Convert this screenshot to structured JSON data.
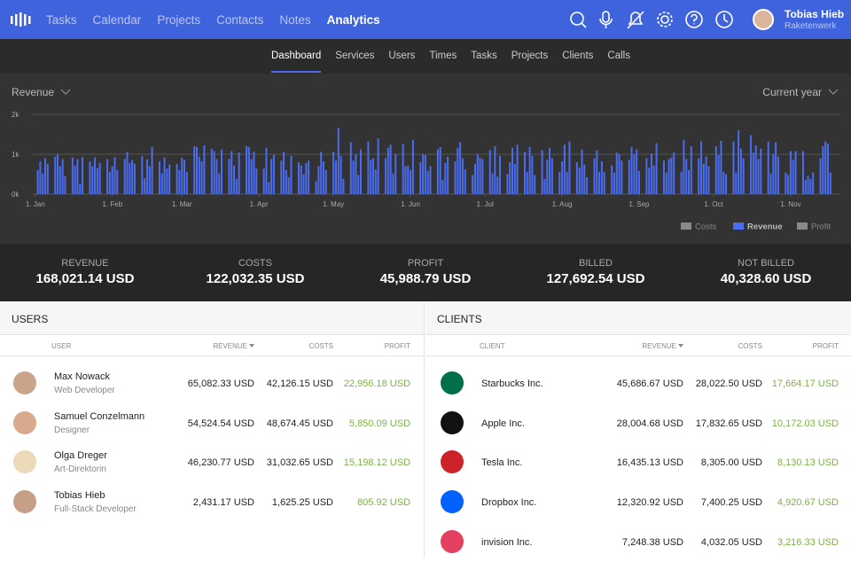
{
  "nav": {
    "items": [
      "Tasks",
      "Calendar",
      "Projects",
      "Contacts",
      "Notes",
      "Analytics"
    ],
    "active": 5
  },
  "user": {
    "name": "Tobias Hieb",
    "company": "Raketenwerk"
  },
  "subnav": {
    "items": [
      "Dashboard",
      "Services",
      "Users",
      "Times",
      "Tasks",
      "Projects",
      "Clients",
      "Calls"
    ],
    "active": 0
  },
  "filters": {
    "metric": "Revenue",
    "period": "Current year"
  },
  "chart_data": {
    "type": "bar",
    "x": [
      2,
      3,
      4,
      5,
      6,
      9,
      10,
      11,
      12,
      13,
      16,
      17,
      18,
      19,
      20,
      23,
      24,
      25,
      26,
      27,
      30,
      31,
      32,
      33,
      34,
      37,
      38,
      39,
      40,
      41,
      44,
      45,
      46,
      47,
      48,
      51,
      52,
      53,
      54,
      55,
      58,
      59,
      60,
      61,
      62,
      65,
      66,
      67,
      68,
      69,
      72,
      73,
      74,
      75,
      76,
      79,
      80,
      81,
      82,
      83,
      86,
      87,
      88,
      89,
      90,
      93,
      94,
      95,
      96,
      97,
      100,
      101,
      102,
      103,
      104,
      107,
      108,
      109,
      110,
      111,
      114,
      115,
      116,
      117,
      118,
      121,
      122,
      123,
      124,
      125,
      128,
      129,
      130,
      131,
      132,
      135,
      136,
      137,
      138,
      139,
      142,
      143,
      144,
      145,
      146,
      149,
      150,
      151,
      152,
      153,
      156,
      157,
      158,
      159,
      160,
      163,
      164,
      165,
      166,
      167,
      170,
      171,
      172,
      173,
      174,
      177,
      178,
      179,
      180,
      181,
      184,
      185,
      186,
      187,
      188,
      191,
      192,
      193,
      194,
      195,
      198,
      199,
      200,
      201,
      202,
      205,
      206,
      207,
      208,
      209,
      212,
      213,
      214,
      215,
      216,
      219,
      220,
      221,
      222,
      223,
      226,
      227,
      228,
      229,
      230,
      233,
      234,
      235,
      236,
      237,
      240,
      241,
      242,
      243,
      244,
      247,
      248,
      249,
      250,
      251,
      254,
      255,
      256,
      257,
      258,
      261,
      262,
      263,
      264,
      265,
      268,
      269,
      270,
      271,
      272,
      275,
      276,
      277,
      278,
      279,
      282,
      283,
      284,
      285,
      286,
      289,
      290,
      291,
      292,
      293,
      296,
      297,
      298,
      299,
      300,
      303,
      304,
      305,
      306,
      307,
      310,
      311,
      312,
      313,
      314,
      317,
      318,
      319,
      320,
      321
    ],
    "series": [
      {
        "name": "Revenue",
        "color": "#4a6cf0",
        "values": [
          600,
          820,
          520,
          900,
          760,
          940,
          1000,
          700,
          880,
          450,
          920,
          720,
          880,
          260,
          930,
          820,
          700,
          920,
          650,
          780,
          880,
          560,
          700,
          930,
          600,
          880,
          1060,
          780,
          860,
          760,
          950,
          400,
          870,
          700,
          1180,
          820,
          520,
          920,
          640,
          740,
          760,
          600,
          910,
          860,
          560,
          1200,
          1180,
          940,
          820,
          1220,
          1140,
          1080,
          880,
          520,
          1120,
          880,
          1080,
          720,
          380,
          1040,
          1200,
          1180,
          880,
          1060,
          640,
          640,
          1160,
          300,
          880,
          980,
          840,
          1060,
          600,
          420,
          960,
          800,
          720,
          500,
          780,
          840,
          320,
          700,
          1060,
          820,
          600,
          1060,
          840,
          1660,
          960,
          380,
          1300,
          840,
          1000,
          480,
          1120,
          1320,
          860,
          900,
          620,
          1400,
          900,
          1160,
          1240,
          520,
          1000,
          1260,
          700,
          720,
          600,
          1360,
          800,
          1000,
          980,
          580,
          700,
          1120,
          1180,
          360,
          780,
          940,
          820,
          1160,
          1300,
          900,
          620,
          480,
          760,
          1000,
          920,
          880,
          1100,
          520,
          1200,
          440,
          960,
          500,
          800,
          1160,
          760,
          1240,
          1060,
          560,
          1180,
          960,
          480,
          1100,
          380,
          860,
          1160,
          900,
          560,
          820,
          1240,
          560,
          1320,
          800,
          660,
          1120,
          740,
          420,
          900,
          1100,
          560,
          820,
          560,
          720,
          540,
          1040,
          1000,
          840,
          860,
          1180,
          1000,
          1120,
          580,
          900,
          660,
          1020,
          720,
          1280,
          840,
          540,
          880,
          920,
          1040,
          560,
          1360,
          880,
          600,
          1200,
          900,
          1320,
          760,
          940,
          700,
          1200,
          980,
          1340,
          560,
          500,
          1320,
          540,
          1600,
          1140,
          900,
          1480,
          1040,
          1220,
          880,
          1140,
          1320,
          520,
          1000,
          1300,
          940,
          540,
          480,
          1080,
          860,
          1080,
          1080,
          360,
          460,
          380,
          540,
          900,
          1200,
          1320,
          1260,
          540
        ]
      }
    ],
    "legend": [
      {
        "name": "Costs",
        "color": "#8a8a8a"
      },
      {
        "name": "Revenue",
        "color": "#4a6cf0"
      },
      {
        "name": "Profit",
        "color": "#8a8a8a"
      }
    ],
    "xlim": [
      0,
      325
    ],
    "xticks": [
      {
        "value": 1,
        "label": "1. Jan"
      },
      {
        "value": 32,
        "label": "1. Feb"
      },
      {
        "value": 60,
        "label": "1. Mar"
      },
      {
        "value": 91,
        "label": "1. Apr"
      },
      {
        "value": 121,
        "label": "1. May"
      },
      {
        "value": 152,
        "label": "1. Jun"
      },
      {
        "value": 182,
        "label": "1. Jul"
      },
      {
        "value": 213,
        "label": "1. Aug"
      },
      {
        "value": 244,
        "label": "1. Sep"
      },
      {
        "value": 274,
        "label": "1. Oct"
      },
      {
        "value": 305,
        "label": "1. Nov"
      }
    ],
    "ylim": [
      0,
      2000
    ],
    "yticks": [
      {
        "value": 0,
        "label": "0k"
      },
      {
        "value": 1000,
        "label": "1k"
      },
      {
        "value": 2000,
        "label": "2k"
      }
    ],
    "grid": true
  },
  "summary": [
    {
      "label": "REVENUE",
      "value": "168,021.14 USD"
    },
    {
      "label": "COSTS",
      "value": "122,032.35 USD"
    },
    {
      "label": "PROFIT",
      "value": "45,988.79 USD"
    },
    {
      "label": "BILLED",
      "value": "127,692.54 USD"
    },
    {
      "label": "NOT BILLED",
      "value": "40,328.60 USD"
    }
  ],
  "users": {
    "title": "USERS",
    "columns": [
      "USER",
      "REVENUE",
      "COSTS",
      "PROFIT"
    ],
    "sorted": 1,
    "rows": [
      {
        "name": "Max Nowack",
        "role": "Web Developer",
        "revenue": "65,082.33 USD",
        "costs": "42,126.15 USD",
        "profit": "22,956.18 USD"
      },
      {
        "name": "Samuel Conzelmann",
        "role": "Designer",
        "revenue": "54,524.54 USD",
        "costs": "48,674.45 USD",
        "profit": "5,850.09 USD"
      },
      {
        "name": "Olga Dreger",
        "role": "Art-Direktorin",
        "revenue": "46,230.77 USD",
        "costs": "31,032.65 USD",
        "profit": "15,198.12 USD"
      },
      {
        "name": "Tobias Hieb",
        "role": "Full-Stack Developer",
        "revenue": "2,431.17 USD",
        "costs": "1,625.25 USD",
        "profit": "805.92 USD"
      }
    ]
  },
  "clients": {
    "title": "CLIENTS",
    "columns": [
      "CLIENT",
      "REVENUE",
      "COSTS",
      "PROFIT"
    ],
    "sorted": 1,
    "rows": [
      {
        "name": "Starbucks Inc.",
        "revenue": "45,686.67 USD",
        "costs": "28,022.50 USD",
        "profit": "17,664.17 USD"
      },
      {
        "name": "Apple Inc.",
        "revenue": "28,004.68 USD",
        "costs": "17,832.65 USD",
        "profit": "10,172.03 USD"
      },
      {
        "name": "Tesla Inc.",
        "revenue": "16,435.13 USD",
        "costs": "8,305.00 USD",
        "profit": "8,130.13 USD"
      },
      {
        "name": "Dropbox Inc.",
        "revenue": "12,320.92 USD",
        "costs": "7,400.25 USD",
        "profit": "4,920.67 USD"
      },
      {
        "name": "invision Inc.",
        "revenue": "7,248.38 USD",
        "costs": "4,032.05 USD",
        "profit": "3,216.33 USD"
      }
    ]
  }
}
